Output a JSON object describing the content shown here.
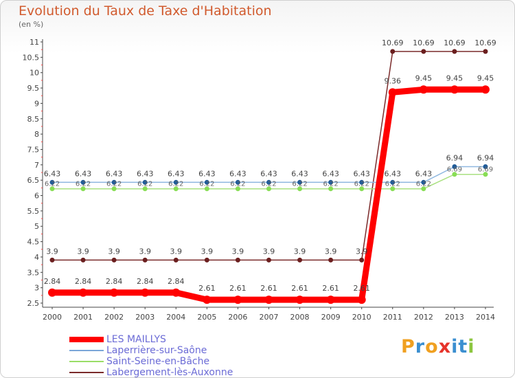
{
  "chart_data": {
    "type": "line",
    "title": "Evolution du Taux de Taxe d'Habitation",
    "subtitle": "(en %)",
    "categories": [
      "2000",
      "2001",
      "2002",
      "2003",
      "2004",
      "2005",
      "2006",
      "2007",
      "2008",
      "2009",
      "2010",
      "2011",
      "2012",
      "2013",
      "2014"
    ],
    "ylim": [
      2.5,
      11
    ],
    "yticks": [
      "2.5",
      "3",
      "3.5",
      "4",
      "4.5",
      "5",
      "5.5",
      "6",
      "6.5",
      "7",
      "7.5",
      "8",
      "8.5",
      "9",
      "9.5",
      "10",
      "10.5",
      "11"
    ],
    "grid": false,
    "legend_position": "bottom-left",
    "series": [
      {
        "name": "LES MAILLYS",
        "color": "#ff0000",
        "values": [
          2.84,
          2.84,
          2.84,
          2.84,
          2.84,
          2.61,
          2.61,
          2.61,
          2.61,
          2.61,
          2.61,
          9.36,
          9.45,
          9.45,
          9.45
        ],
        "labels": [
          "2.84",
          "2.84",
          "2.84",
          "2.84",
          "2.84",
          "2.61",
          "2.61",
          "2.61",
          "2.61",
          "2.61",
          "2.61",
          "9.36",
          "9.45",
          "9.45",
          "9.45"
        ]
      },
      {
        "name": "Laperrière-sur-Saône",
        "color": "#7aa6d8",
        "values": [
          6.43,
          6.43,
          6.43,
          6.43,
          6.43,
          6.43,
          6.43,
          6.43,
          6.43,
          6.43,
          6.43,
          6.43,
          6.43,
          6.94,
          6.94
        ],
        "labels": [
          "6.43",
          "6.43",
          "6.43",
          "6.43",
          "6.43",
          "6.43",
          "6.43",
          "6.43",
          "6.43",
          "6.43",
          "6.43",
          "6.43",
          "6.43",
          "6.94",
          "6.94"
        ]
      },
      {
        "name": "Saint-Seine-en-Bâche",
        "color": "#99dd66",
        "values": [
          6.22,
          6.22,
          6.22,
          6.22,
          6.22,
          6.22,
          6.22,
          6.22,
          6.22,
          6.22,
          6.22,
          6.22,
          6.22,
          6.69,
          6.69
        ],
        "labels": [
          "6.22",
          "6.22",
          "6.22",
          "6.22",
          "6.22",
          "6.22",
          "6.22",
          "6.22",
          "6.22",
          "6.22",
          "6.22",
          "6.22",
          "6.22",
          "6.69",
          "6.69"
        ]
      },
      {
        "name": "Labergement-lès-Auxonne",
        "color": "#7a2a2a",
        "values": [
          3.9,
          3.9,
          3.9,
          3.9,
          3.9,
          3.9,
          3.9,
          3.9,
          3.9,
          3.9,
          3.9,
          10.69,
          10.69,
          10.69,
          10.69
        ],
        "labels": [
          "3.9",
          "3.9",
          "3.9",
          "3.9",
          "3.9",
          "3.9",
          "3.9",
          "3.9",
          "3.9",
          "3.9",
          "3.9",
          "10.69",
          "10.69",
          "10.69",
          "10.69"
        ]
      }
    ]
  },
  "brand": {
    "name": "Proxiti",
    "letters": [
      "P",
      "r",
      "o",
      "x",
      "i",
      "t",
      "i"
    ],
    "letter_colors": [
      "#f0a020",
      "#3b8fd0",
      "#f0a020",
      "#e6332a",
      "#3b8fd0",
      "#3b8fd0",
      "#8cc63f"
    ]
  }
}
